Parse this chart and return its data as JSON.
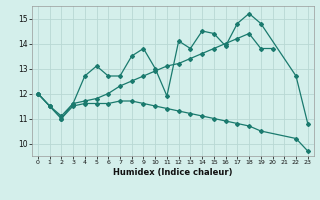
{
  "xlabel": "Humidex (Indice chaleur)",
  "xlim": [
    -0.5,
    23.5
  ],
  "ylim": [
    9.5,
    15.5
  ],
  "yticks": [
    10,
    11,
    12,
    13,
    14,
    15
  ],
  "xticks": [
    0,
    1,
    2,
    3,
    4,
    5,
    6,
    7,
    8,
    9,
    10,
    11,
    12,
    13,
    14,
    15,
    16,
    17,
    18,
    19,
    20,
    21,
    22,
    23
  ],
  "color": "#1a7a6e",
  "bg_color": "#d4efeb",
  "grid_color": "#c0deda",
  "line1_x": [
    0,
    1,
    2,
    3,
    4,
    5,
    6,
    7,
    8,
    9,
    10,
    11,
    12,
    13,
    14,
    15,
    16,
    17,
    18,
    19,
    22,
    23
  ],
  "line1_y": [
    12.0,
    11.5,
    11.0,
    11.6,
    12.7,
    13.1,
    12.7,
    12.7,
    13.5,
    13.8,
    13.0,
    11.9,
    14.1,
    13.8,
    14.5,
    14.4,
    13.9,
    14.8,
    15.2,
    14.8,
    12.7,
    10.8
  ],
  "line2_x": [
    0,
    1,
    2,
    3,
    4,
    5,
    6,
    7,
    8,
    9,
    10,
    11,
    12,
    13,
    14,
    15,
    16,
    17,
    18,
    19,
    20
  ],
  "line2_y": [
    12.0,
    11.5,
    11.1,
    11.6,
    11.7,
    11.8,
    12.0,
    12.3,
    12.5,
    12.7,
    12.9,
    13.1,
    13.2,
    13.4,
    13.6,
    13.8,
    14.0,
    14.2,
    14.4,
    13.8,
    13.8
  ],
  "line3_x": [
    0,
    1,
    2,
    3,
    4,
    5,
    6,
    7,
    8,
    9,
    10,
    11,
    12,
    13,
    14,
    15,
    16,
    17,
    18,
    19,
    22,
    23
  ],
  "line3_y": [
    12.0,
    11.5,
    11.0,
    11.5,
    11.6,
    11.6,
    11.6,
    11.7,
    11.7,
    11.6,
    11.5,
    11.4,
    11.3,
    11.2,
    11.1,
    11.0,
    10.9,
    10.8,
    10.7,
    10.5,
    10.2,
    9.7
  ]
}
